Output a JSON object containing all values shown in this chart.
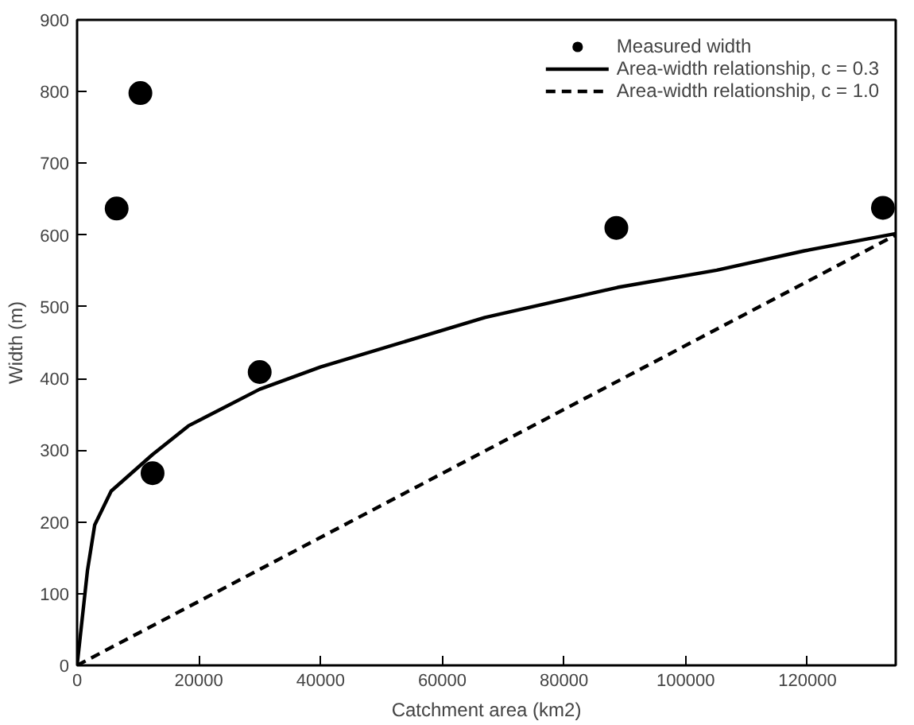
{
  "chart_data": {
    "type": "scatter",
    "xlabel": "Catchment area (km2)",
    "ylabel": "Width (m)",
    "xlim": [
      0,
      134500
    ],
    "ylim": [
      0,
      900
    ],
    "xticks": [
      0,
      20000,
      40000,
      60000,
      80000,
      100000,
      120000
    ],
    "yticks": [
      0,
      100,
      200,
      300,
      400,
      500,
      600,
      700,
      800,
      900
    ],
    "grid": false,
    "legend": "top right",
    "series": [
      {
        "name": "Measured width",
        "marker": "circle",
        "color": "#000000",
        "x": [
          6500,
          10400,
          12400,
          30000,
          88600,
          132400
        ],
        "values": [
          637,
          798,
          268,
          409,
          610,
          638
        ]
      },
      {
        "name": "Area-width relationship, c = 0.3",
        "type": "line",
        "line_style": "solid",
        "color": "#000000",
        "x": [
          0,
          1700,
          2900,
          5600,
          12400,
          18300,
          30000,
          40000,
          67000,
          88800,
          105100,
          119500,
          134500
        ],
        "values": [
          0,
          132,
          196,
          243,
          294,
          334,
          385,
          416,
          485,
          527,
          551,
          578,
          602
        ]
      },
      {
        "name": "Area-width relationship, c = 1.0",
        "type": "line",
        "line_style": "dashed",
        "color": "#000000",
        "x": [
          0,
          134500
        ],
        "values": [
          0,
          600
        ]
      }
    ]
  }
}
